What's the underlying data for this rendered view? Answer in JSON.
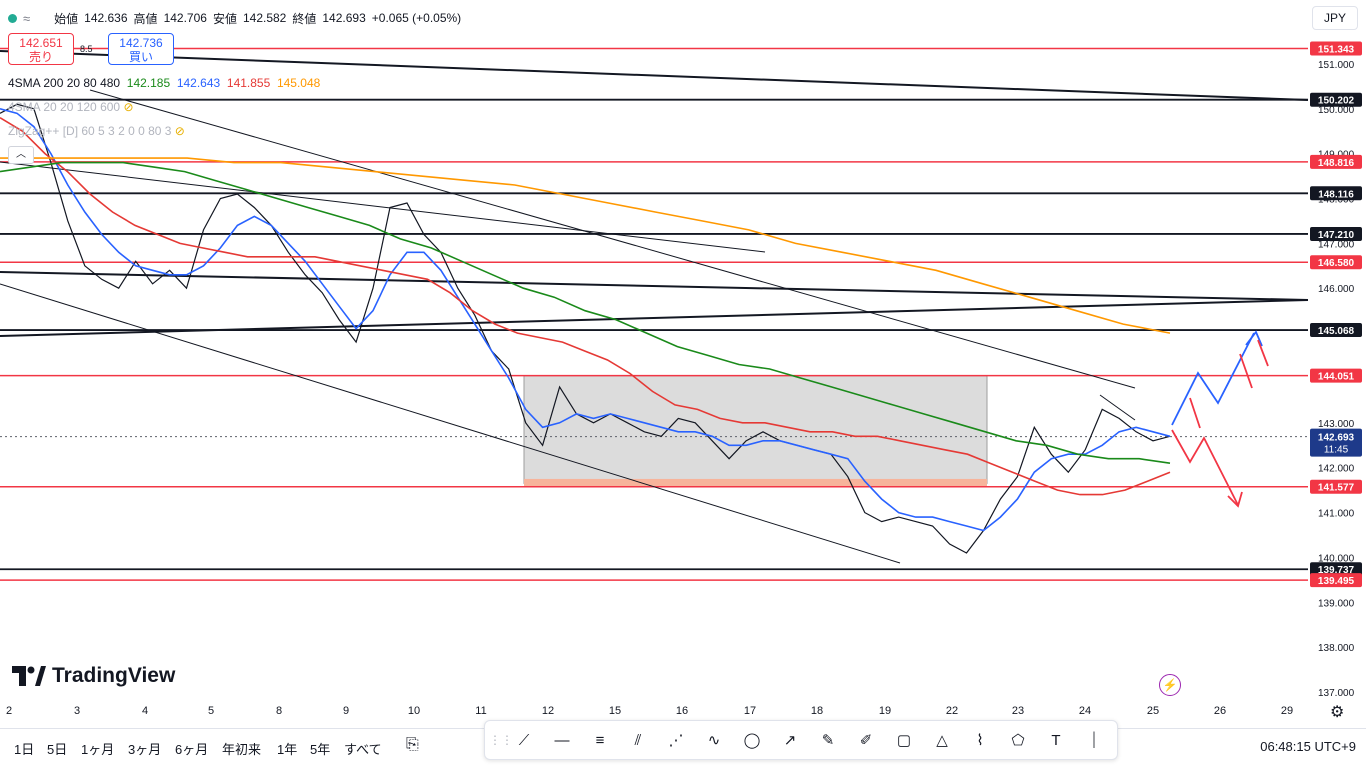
{
  "header": {
    "ohlc_labels": {
      "open": "始値",
      "high": "高値",
      "low": "安値",
      "close": "終値"
    },
    "open": "142.636",
    "high": "142.706",
    "low": "142.582",
    "close": "142.693",
    "change": "+0.065 (+0.05%)",
    "currency": "JPY"
  },
  "order_panel": {
    "sell_price": "142.651",
    "sell_label": "売り",
    "spread": "8.5",
    "buy_price": "142.736",
    "buy_label": "買い"
  },
  "indicators": {
    "sma": {
      "name": "4SMA 200 20 80 480",
      "v1": "142.185",
      "v2": "142.643",
      "v3": "141.855",
      "v4": "145.048"
    },
    "sma2": "4SMA 20 20 120 600",
    "zigzag": "ZigZag++ [D] 60 5 3 2 0 0 80 3"
  },
  "colors": {
    "red_line": "#f23645",
    "blue_sma": "#2962ff",
    "green_sma": "#1a8a1a",
    "orange_sma": "#ff9800",
    "red_sma": "#e53935"
  },
  "logo": "TradingView",
  "timeframes": [
    "1日",
    "5日",
    "1ヶ月",
    "3ヶ月",
    "6ヶ月",
    "年初来",
    "1年",
    "5年",
    "すべて"
  ],
  "clock": "06:48:15 UTC+9",
  "drawing_tools": [
    "trend-line-icon",
    "horizontal-ray-icon",
    "parallel-channel-icon",
    "pitchfork-icon",
    "fib-icon",
    "curve-icon",
    "ellipse-icon",
    "arrow-icon",
    "brush-icon",
    "highlighter-icon",
    "rectangle-icon",
    "triangle-icon",
    "path-icon",
    "pattern-icon",
    "text-icon",
    "vertical-line-icon"
  ],
  "chart_data": {
    "type": "line",
    "symbol_currency": "JPY",
    "y_ticks": [
      "151.000",
      "150.000",
      "149.000",
      "148.000",
      "147.000",
      "146.000",
      "145.000",
      "143.000",
      "142.000",
      "141.000",
      "140.000",
      "139.000",
      "138.000",
      "137.000"
    ],
    "x_ticks": [
      "2",
      "3",
      "4",
      "5",
      "8",
      "9",
      "10",
      "11",
      "12",
      "15",
      "16",
      "17",
      "18",
      "19",
      "22",
      "23",
      "24",
      "25",
      "26",
      "29"
    ],
    "ylim": [
      136.6,
      151.8
    ],
    "horizontal_levels": [
      {
        "value": 151.343,
        "label": "151.343",
        "color": "red"
      },
      {
        "value": 150.202,
        "label": "150.202",
        "color": "black"
      },
      {
        "value": 148.816,
        "label": "148.816",
        "color": "red"
      },
      {
        "value": 148.116,
        "label": "148.116",
        "color": "black"
      },
      {
        "value": 147.21,
        "label": "147.210",
        "color": "black"
      },
      {
        "value": 146.58,
        "label": "146.580",
        "color": "red"
      },
      {
        "value": 145.068,
        "label": "145.068",
        "color": "black"
      },
      {
        "value": 144.051,
        "label": "144.051",
        "color": "red"
      },
      {
        "value": 141.577,
        "label": "141.577",
        "color": "red"
      },
      {
        "value": 139.737,
        "label": "139.737",
        "color": "black"
      },
      {
        "value": 139.495,
        "label": "139.495",
        "color": "red"
      }
    ],
    "last_price": {
      "value": 142.693,
      "label": "142.693",
      "countdown": "11:45"
    },
    "series": [
      {
        "values": [
          149.9,
          150.1,
          150.0,
          148.8,
          147.5,
          146.5,
          146.2,
          146.0,
          146.6,
          146.1,
          146.4,
          146.0,
          147.3,
          148.0,
          148.1,
          147.8,
          147.4,
          146.8,
          146.3,
          145.9,
          145.3,
          144.8,
          146.0,
          147.8,
          147.9,
          147.2,
          146.8,
          146.0,
          145.4,
          144.6,
          144.2,
          143.0,
          142.5,
          143.8,
          143.2,
          143.0,
          143.2,
          143.0,
          142.8,
          142.7,
          143.1,
          143.0,
          142.6,
          142.2,
          142.6,
          142.8,
          142.6,
          142.5,
          142.4,
          142.3,
          141.8,
          141.0,
          140.8,
          140.9,
          140.8,
          140.7,
          140.3,
          140.1,
          140.6,
          141.3,
          141.8,
          142.9,
          142.3,
          141.9,
          142.4,
          143.3,
          143.1,
          142.8,
          142.6,
          142.7
        ]
      },
      {
        "values": [
          150.0,
          149.9,
          149.6,
          149.0,
          148.3,
          147.7,
          147.2,
          146.8,
          146.5,
          146.4,
          146.3,
          146.3,
          146.5,
          146.9,
          147.4,
          147.6,
          147.4,
          147.0,
          146.6,
          146.1,
          145.6,
          145.1,
          145.5,
          146.3,
          146.8,
          146.8,
          146.4,
          145.8,
          145.2,
          144.6,
          144.0,
          143.3,
          142.9,
          143.0,
          143.2,
          143.1,
          143.2,
          143.1,
          143.0,
          142.9,
          142.8,
          142.8,
          142.7,
          142.5,
          142.5,
          142.6,
          142.6,
          142.5,
          142.4,
          142.3,
          142.2,
          141.7,
          141.3,
          141.0,
          140.9,
          140.9,
          140.8,
          140.7,
          140.6,
          140.9,
          141.3,
          141.9,
          142.2,
          142.3,
          142.3,
          142.5,
          142.8,
          142.9,
          142.8,
          142.7
        ]
      },
      {
        "values": [
          149.8,
          149.5,
          149.0,
          148.6,
          148.1,
          147.7,
          147.4,
          147.2,
          147.0,
          146.9,
          146.8,
          146.7,
          146.7,
          146.7,
          146.7,
          146.6,
          146.5,
          146.4,
          146.3,
          146.2,
          145.9,
          145.5,
          145.2,
          145.0,
          144.9,
          144.8,
          144.6,
          144.4,
          144.1,
          143.7,
          143.4,
          143.3,
          143.1,
          143.0,
          143.0,
          142.9,
          142.8,
          142.8,
          142.7,
          142.7,
          142.6,
          142.5,
          142.4,
          142.3,
          142.1,
          141.9,
          141.7,
          141.5,
          141.4,
          141.4,
          141.5,
          141.7,
          141.9
        ]
      },
      {
        "values": [
          148.6,
          148.7,
          148.8,
          148.8,
          148.8,
          148.7,
          148.6,
          148.4,
          148.2,
          148.0,
          147.8,
          147.6,
          147.4,
          147.1,
          146.9,
          146.6,
          146.3,
          146.0,
          145.8,
          145.5,
          145.3,
          145.0,
          144.7,
          144.5,
          144.3,
          144.2,
          144.0,
          143.8,
          143.6,
          143.4,
          143.2,
          143.0,
          142.8,
          142.6,
          142.5,
          142.3,
          142.2,
          142.2,
          142.1
        ]
      },
      {
        "values": [
          148.9,
          148.9,
          148.9,
          148.9,
          148.9,
          148.8,
          148.8,
          148.7,
          148.6,
          148.5,
          148.4,
          148.3,
          148.1,
          147.9,
          147.7,
          147.5,
          147.3,
          147.0,
          146.8,
          146.6,
          146.4,
          146.1,
          145.8,
          145.5,
          145.2,
          145.0
        ]
      }
    ],
    "range_box": {
      "from_label": "12",
      "to_label": "22",
      "top": 144.05,
      "bottom": 141.65
    }
  }
}
